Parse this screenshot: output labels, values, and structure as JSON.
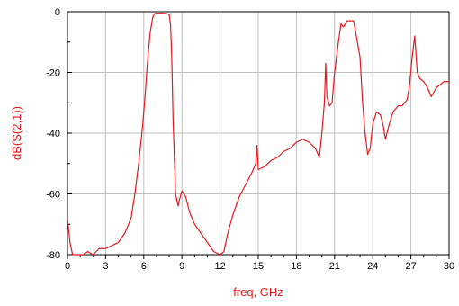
{
  "chart_data": {
    "type": "line",
    "title": "",
    "xlabel": "freq, GHz",
    "ylabel": "dB(S(2,1))",
    "xlim": [
      0,
      30
    ],
    "ylim": [
      -80,
      0
    ],
    "xticks": [
      0,
      3,
      6,
      9,
      12,
      15,
      18,
      21,
      24,
      27,
      30
    ],
    "yticks": [
      0,
      -20,
      -40,
      -60,
      -80
    ],
    "grid": true,
    "legend": "none",
    "colors": {
      "series": "#e8191d",
      "axis_label": "#e8191d",
      "grid": "#c0c0c0",
      "frame": "#000000"
    },
    "series": [
      {
        "x": [
          0.0,
          0.1,
          0.2,
          0.4,
          0.8,
          1.2,
          1.6,
          2.0,
          2.5,
          3.0,
          3.5,
          4.0,
          4.5,
          5.0,
          5.3,
          5.6,
          5.9,
          6.1,
          6.3,
          6.5,
          6.7,
          6.8,
          6.9,
          7.0,
          7.2,
          7.5,
          7.8,
          8.0,
          8.1,
          8.2,
          8.3,
          8.5,
          8.7,
          8.8,
          9.0,
          9.3,
          9.6,
          10.0,
          10.5,
          11.0,
          11.5,
          12.0,
          12.3,
          12.6,
          13.0,
          13.5,
          14.0,
          14.5,
          14.8,
          14.9,
          15.0,
          15.5,
          16.0,
          16.5,
          17.0,
          17.5,
          18.0,
          18.5,
          19.0,
          19.5,
          19.8,
          20.0,
          20.2,
          20.3,
          20.4,
          20.6,
          20.8,
          21.0,
          21.3,
          21.5,
          21.7,
          22.0,
          22.5,
          23.0,
          23.2,
          23.4,
          23.6,
          23.8,
          24.0,
          24.3,
          24.6,
          24.8,
          25.0,
          25.3,
          25.6,
          26.0,
          26.3,
          26.5,
          26.7,
          26.9,
          27.1,
          27.3,
          27.5,
          27.7,
          28.0,
          28.3,
          28.6,
          29.0,
          29.3,
          29.6,
          30.0
        ],
        "y": [
          -68,
          -72,
          -76,
          -80,
          -80,
          -80,
          -79,
          -80,
          -78,
          -78,
          -77,
          -76,
          -73,
          -68,
          -60,
          -50,
          -38,
          -28,
          -16,
          -7,
          -2,
          -1,
          -0.5,
          -0.5,
          -0.5,
          -0.5,
          -0.6,
          -1,
          -4,
          -15,
          -35,
          -60,
          -64,
          -62,
          -59,
          -61,
          -66,
          -70,
          -73,
          -76,
          -79,
          -80,
          -79,
          -73,
          -67,
          -61,
          -57,
          -53,
          -50,
          -44,
          -52,
          -51,
          -49,
          -48,
          -46,
          -45,
          -43,
          -42,
          -43,
          -45,
          -48,
          -40,
          -30,
          -17,
          -28,
          -31,
          -30,
          -20,
          -10,
          -4,
          -5,
          -3,
          -3,
          -15,
          -30,
          -40,
          -47,
          -45,
          -37,
          -33,
          -34,
          -37,
          -42,
          -37,
          -33,
          -31,
          -31,
          -30,
          -29,
          -24,
          -15,
          -8,
          -20,
          -22,
          -23,
          -25,
          -28,
          -25,
          -24,
          -23,
          -23
        ]
      }
    ]
  }
}
